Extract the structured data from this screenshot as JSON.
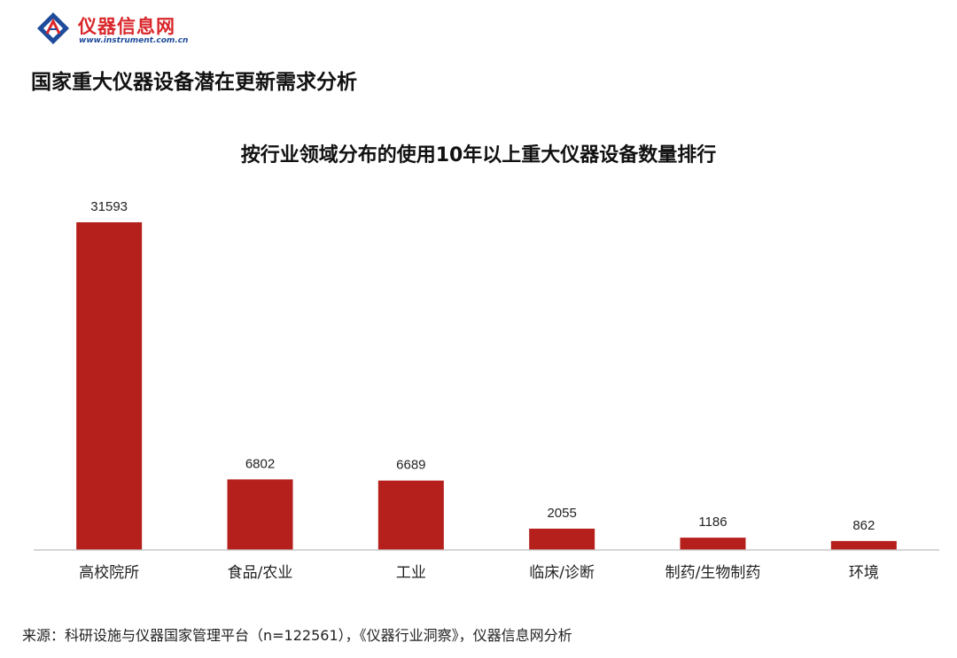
{
  "header": {
    "logo_name": "仪器信息网",
    "logo_url": "www.instrument.com.cn",
    "page_title": "国家重大仪器设备潜在更新需求分析"
  },
  "chart_data": {
    "type": "bar",
    "title": "按行业领域分布的使用10年以上重大仪器设备数量排行",
    "categories": [
      "高校院所",
      "食品/农业",
      "工业",
      "临床/诊断",
      "制药/生物制药",
      "环境"
    ],
    "values": [
      31593,
      6802,
      6689,
      2055,
      1186,
      862
    ],
    "xlabel": "",
    "ylabel": "",
    "ylim": [
      0,
      31593
    ],
    "grid": false,
    "bar_color": "#b5201d"
  },
  "footer": {
    "source": "来源：科研设施与仪器国家管理平台（n=122561），《仪器行业洞察》，仪器信息网分析"
  }
}
